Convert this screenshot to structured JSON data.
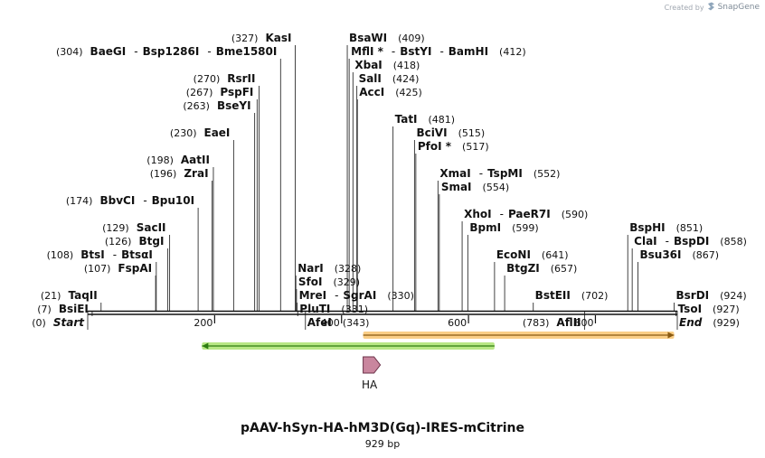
{
  "credit": {
    "prefix": "Created by",
    "brand": "SnapGene"
  },
  "title": "pAAV-hSyn-HA-hM3D(Gq)-IRES-mCitrine",
  "subtitle": "929 bp",
  "sequence_length": 929,
  "axis_ticks": [
    {
      "value": 200,
      "label": "200"
    },
    {
      "value": 400,
      "label": "400"
    },
    {
      "value": 600,
      "label": "600"
    },
    {
      "value": 800,
      "label": "800"
    }
  ],
  "sites": [
    {
      "pos": 327,
      "pos_label": "(327)",
      "names": [
        "KasI"
      ],
      "side": "left",
      "row": 0
    },
    {
      "pos": 304,
      "pos_label": "(304)",
      "names": [
        "BaeGI",
        "Bsp1286I",
        "Bme1580I"
      ],
      "side": "left",
      "row": 1
    },
    {
      "pos": 270,
      "pos_label": "(270)",
      "names": [
        "RsrII"
      ],
      "side": "left",
      "row": 3
    },
    {
      "pos": 267,
      "pos_label": "(267)",
      "names": [
        "PspFI"
      ],
      "side": "left",
      "row": 4
    },
    {
      "pos": 263,
      "pos_label": "(263)",
      "names": [
        "BseYI"
      ],
      "side": "left",
      "row": 5
    },
    {
      "pos": 230,
      "pos_label": "(230)",
      "names": [
        "EaeI"
      ],
      "side": "left",
      "row": 7
    },
    {
      "pos": 198,
      "pos_label": "(198)",
      "names": [
        "AatII"
      ],
      "side": "left",
      "row": 9
    },
    {
      "pos": 196,
      "pos_label": "(196)",
      "names": [
        "ZraI"
      ],
      "side": "left",
      "row": 10
    },
    {
      "pos": 174,
      "pos_label": "(174)",
      "names": [
        "BbvCI",
        "Bpu10I"
      ],
      "side": "left",
      "row": 12
    },
    {
      "pos": 129,
      "pos_label": "(129)",
      "names": [
        "SacII"
      ],
      "side": "left",
      "row": 14
    },
    {
      "pos": 126,
      "pos_label": "(126)",
      "names": [
        "BtgI"
      ],
      "side": "left",
      "row": 15
    },
    {
      "pos": 108,
      "pos_label": "(108)",
      "names": [
        "BtsI",
        "BtsαI"
      ],
      "side": "left",
      "row": 16
    },
    {
      "pos": 107,
      "pos_label": "(107)",
      "names": [
        "FspAI"
      ],
      "side": "left",
      "row": 17
    },
    {
      "pos": 21,
      "pos_label": "(21)",
      "names": [
        "TaqII"
      ],
      "side": "left",
      "row": 19
    },
    {
      "pos": 7,
      "pos_label": "(7)",
      "names": [
        "BsiEI"
      ],
      "side": "left",
      "row": 20
    },
    {
      "pos": 0,
      "pos_label": "(0)",
      "names": [
        "Start"
      ],
      "side": "left",
      "row": 21,
      "italic": true
    },
    {
      "pos": 328,
      "pos_label": "(328)",
      "names": [
        "NarI"
      ],
      "side": "right",
      "row": 17
    },
    {
      "pos": 329,
      "pos_label": "(329)",
      "names": [
        "SfoI"
      ],
      "side": "right",
      "row": 18
    },
    {
      "pos": 330,
      "pos_label": "(330)",
      "names": [
        "MreI",
        "SgrAI"
      ],
      "side": "right",
      "row": 19
    },
    {
      "pos": 331,
      "pos_label": "(331)",
      "names": [
        "PluTI"
      ],
      "side": "right",
      "row": 20
    },
    {
      "pos": 343,
      "pos_label": "(343)",
      "names": [
        "AfeI"
      ],
      "side": "right",
      "row": 21
    },
    {
      "pos": 409,
      "pos_label": "(409)",
      "names": [
        "BsaWI"
      ],
      "side": "right",
      "row": 0
    },
    {
      "pos": 412,
      "pos_label": "(412)",
      "names": [
        "MflI *",
        "BstYI",
        "BamHI"
      ],
      "side": "right",
      "row": 1
    },
    {
      "pos": 418,
      "pos_label": "(418)",
      "names": [
        "XbaI"
      ],
      "side": "right",
      "row": 2
    },
    {
      "pos": 424,
      "pos_label": "(424)",
      "names": [
        "SalI"
      ],
      "side": "right",
      "row": 3
    },
    {
      "pos": 425,
      "pos_label": "(425)",
      "names": [
        "AccI"
      ],
      "side": "right",
      "row": 4
    },
    {
      "pos": 481,
      "pos_label": "(481)",
      "names": [
        "TatI"
      ],
      "side": "right",
      "row": 6
    },
    {
      "pos": 515,
      "pos_label": "(515)",
      "names": [
        "BciVI"
      ],
      "side": "right",
      "row": 7
    },
    {
      "pos": 517,
      "pos_label": "(517)",
      "names": [
        "PfoI *"
      ],
      "side": "right",
      "row": 8
    },
    {
      "pos": 552,
      "pos_label": "(552)",
      "names": [
        "XmaI",
        "TspMI"
      ],
      "side": "right",
      "row": 10
    },
    {
      "pos": 554,
      "pos_label": "(554)",
      "names": [
        "SmaI"
      ],
      "side": "right",
      "row": 11
    },
    {
      "pos": 590,
      "pos_label": "(590)",
      "names": [
        "XhoI",
        "PaeR7I"
      ],
      "side": "right",
      "row": 13
    },
    {
      "pos": 599,
      "pos_label": "(599)",
      "names": [
        "BpmI"
      ],
      "side": "right",
      "row": 14
    },
    {
      "pos": 641,
      "pos_label": "(641)",
      "names": [
        "EcoNI"
      ],
      "side": "right",
      "row": 16
    },
    {
      "pos": 657,
      "pos_label": "(657)",
      "names": [
        "BtgZI"
      ],
      "side": "right",
      "row": 17
    },
    {
      "pos": 702,
      "pos_label": "(702)",
      "names": [
        "BstEII"
      ],
      "side": "right",
      "row": 19
    },
    {
      "pos": 783,
      "pos_label": "(783)",
      "names": [
        "AflII"
      ],
      "side": "left",
      "row": 21
    },
    {
      "pos": 851,
      "pos_label": "(851)",
      "names": [
        "BspHI"
      ],
      "side": "right",
      "row": 14
    },
    {
      "pos": 858,
      "pos_label": "(858)",
      "names": [
        "ClaI",
        "BspDI"
      ],
      "side": "right",
      "row": 15
    },
    {
      "pos": 867,
      "pos_label": "(867)",
      "names": [
        "Bsu36I"
      ],
      "side": "right",
      "row": 16
    },
    {
      "pos": 924,
      "pos_label": "(924)",
      "names": [
        "BsrDI"
      ],
      "side": "right",
      "row": 19
    },
    {
      "pos": 927,
      "pos_label": "(927)",
      "names": [
        "TsoI"
      ],
      "side": "right",
      "row": 20
    },
    {
      "pos": 929,
      "pos_label": "(929)",
      "names": [
        "End"
      ],
      "side": "right",
      "row": 21,
      "italic": true
    }
  ],
  "features": [
    {
      "start": 180,
      "end": 641,
      "direction": "reverse",
      "color": "#7ed321",
      "edge": "#2e7d12"
    },
    {
      "start": 434,
      "end": 924,
      "direction": "forward",
      "color": "#f5a623",
      "edge": "#8a5a12"
    },
    {
      "start": 434,
      "end": 461,
      "direction": "forward",
      "color": "#c9869e",
      "edge": "#6b3148",
      "label": "HA"
    }
  ]
}
